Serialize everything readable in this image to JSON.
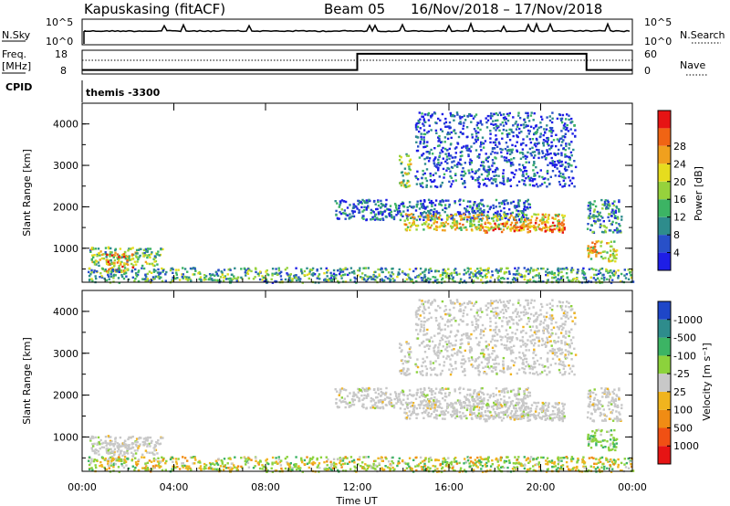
{
  "header": {
    "station": "Kapuskasing (fitACF)",
    "beam": "Beam 05",
    "dates": "16/Nov/2018 – 17/Nov/2018"
  },
  "noise_panel": {
    "left_label": "N.Sky",
    "right_label": "N.Search",
    "left_ticks": [
      "10^5",
      "10^0"
    ],
    "right_ticks": [
      "10^5",
      "10^0"
    ]
  },
  "freq_panel": {
    "left_label_1": "Freq.",
    "left_label_2": "[MHz]",
    "right_label": "Nave",
    "left_ticks": [
      "18",
      "8"
    ],
    "right_ticks": [
      "60",
      "0"
    ],
    "freq_steps": [
      {
        "t_start": 0,
        "t_end": 12,
        "level": 0.14
      },
      {
        "t_start": 12,
        "t_end": 22,
        "level": 0.88
      },
      {
        "t_start": 22,
        "t_end": 24,
        "level": 0.14
      }
    ]
  },
  "cpid": {
    "label": "CPID",
    "value": "themis -3300"
  },
  "power_panel": {
    "ylabel": "Slant Range [km]",
    "yticks": [
      "1000",
      "2000",
      "3000",
      "4000"
    ],
    "colorbar_label": "Power [dB]",
    "colorbar_ticks": [
      "4",
      "8",
      "12",
      "16",
      "20",
      "24",
      "28"
    ],
    "colors": [
      "#1e1ee6",
      "#2850c8",
      "#2e8c8c",
      "#3cb464",
      "#96d23c",
      "#e6dc1e",
      "#f0a01e",
      "#f06414",
      "#e61414"
    ]
  },
  "velocity_panel": {
    "ylabel": "Slant Range [km]",
    "yticks": [
      "1000",
      "2000",
      "3000",
      "4000"
    ],
    "colorbar_label": "Velocity [m s⁻¹]",
    "colorbar_ticks": [
      "1000",
      "500",
      "100",
      "25",
      "-25",
      "-100",
      "-500",
      "-1000"
    ],
    "colors": [
      "#1e46c8",
      "#2e8c8c",
      "#3cb464",
      "#8cd23c",
      "#c8c8c8",
      "#f0b41e",
      "#f08c14",
      "#f05014",
      "#e61414"
    ]
  },
  "xaxis": {
    "label": "Time UT",
    "ticks": [
      "00:00",
      "04:00",
      "08:00",
      "12:00",
      "16:00",
      "20:00",
      "00:00"
    ]
  },
  "chart_data": {
    "type": "heatmap",
    "title": "Kapuskasing (fitACF) Beam 05 16/Nov/2018 – 17/Nov/2018",
    "xlabel": "Time UT",
    "ylabel": "Slant Range [km]",
    "xlim": [
      "00:00",
      "00:00"
    ],
    "ylim": [
      180,
      4500
    ],
    "scatter_regions": [
      {
        "t0": 0.3,
        "t1": 3.5,
        "r0": 600,
        "r1": 1050,
        "power_level": 0.45,
        "velocity": "gray"
      },
      {
        "t0": 1.0,
        "t1": 2.2,
        "r0": 450,
        "r1": 900,
        "power_level": 0.75,
        "velocity": "gray"
      },
      {
        "t0": 0.2,
        "t1": 24.0,
        "r0": 190,
        "r1": 550,
        "power_level": 0.35,
        "velocity": "green-orange"
      },
      {
        "t0": 11.0,
        "t1": 19.5,
        "r0": 1700,
        "r1": 2200,
        "power_level": 0.2,
        "velocity": "gray"
      },
      {
        "t0": 14.0,
        "t1": 21.0,
        "r0": 1450,
        "r1": 1850,
        "power_level": 0.6,
        "velocity": "gray"
      },
      {
        "t0": 17.5,
        "t1": 21.0,
        "r0": 1400,
        "r1": 1650,
        "power_level": 0.85,
        "velocity": "gray"
      },
      {
        "t0": 13.8,
        "t1": 14.3,
        "r0": 2500,
        "r1": 3300,
        "power_level": 0.5,
        "velocity": "gray"
      },
      {
        "t0": 22.0,
        "t1": 23.3,
        "r0": 700,
        "r1": 1200,
        "power_level": 0.6,
        "velocity": "green"
      },
      {
        "t0": 22.0,
        "t1": 23.5,
        "r0": 1400,
        "r1": 2200,
        "power_level": 0.3,
        "velocity": "gray"
      },
      {
        "t0": 14.5,
        "t1": 21.5,
        "r0": 2500,
        "r1": 4300,
        "power_level": 0.15,
        "velocity": "gray"
      }
    ]
  }
}
